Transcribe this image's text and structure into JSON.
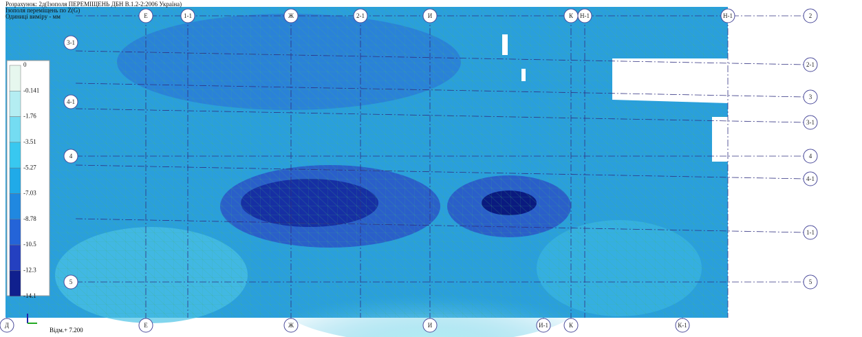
{
  "header": {
    "lines": [
      "Розрахунок: 2д(Ізополя ПЕРЕМІЩЕНЬ ДБН В.1.2-2:2006 Україна)",
      "Ізополя переміщень по Z(G)",
      "Одиниці виміру - мм"
    ]
  },
  "legend": {
    "values": [
      0,
      -0.141,
      -1.76,
      -3.51,
      -5.27,
      -7.03,
      -8.78,
      -10.5,
      -12.3,
      -14.1
    ]
  },
  "axes": {
    "top": [
      "Е",
      "1-1",
      "Ж",
      "2-1",
      "И",
      "К",
      "Н-1",
      "Н-1"
    ],
    "bottom": [
      "Д",
      "Е",
      "Ж",
      "И",
      "И-1",
      "К",
      "К-1"
    ],
    "right": [
      "2",
      "2-1",
      "3",
      "3-1",
      "4",
      "4-1",
      "1-1",
      "5"
    ],
    "left": [
      "3-1",
      "4-1",
      "4",
      "5"
    ]
  },
  "elevation": "Відм.+ 7.200"
}
